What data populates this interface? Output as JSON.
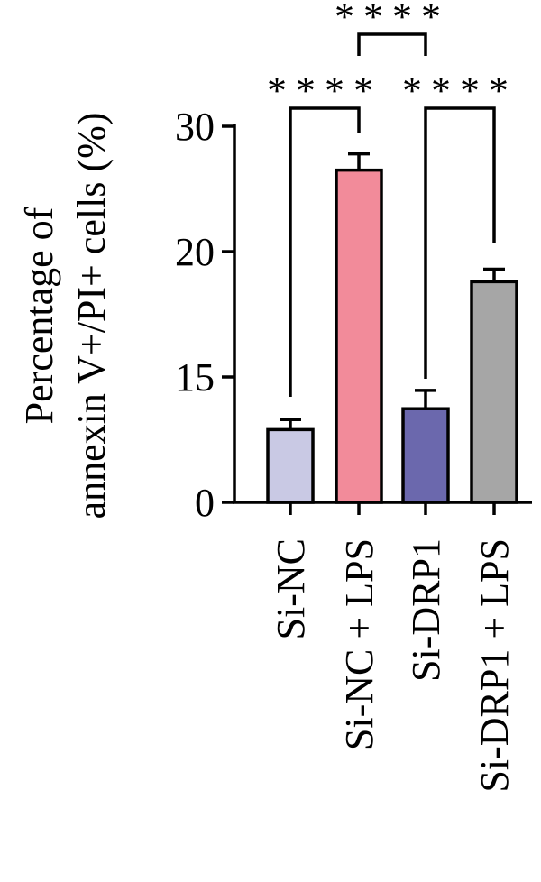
{
  "chart_data": {
    "type": "bar",
    "y_label_lines": [
      "Percentage of",
      "annexin V+/PI+ cells (%)"
    ],
    "categories": [
      "Si-NC",
      "Si-NC + LPS",
      "Si-DRP1",
      "Si-DRP1 + LPS"
    ],
    "values": [
      8.7,
      26.5,
      11.2,
      18.8
    ],
    "errors": [
      1.2,
      1.3,
      2.2,
      0.5
    ],
    "colors": [
      "#c9c9e4",
      "#f28b9a",
      "#6b68ad",
      "#a6a6a6"
    ],
    "ylim": [
      0,
      30
    ],
    "yticks": [
      0,
      15,
      20,
      30
    ],
    "annotations": [
      "****",
      "****",
      "****"
    ]
  }
}
